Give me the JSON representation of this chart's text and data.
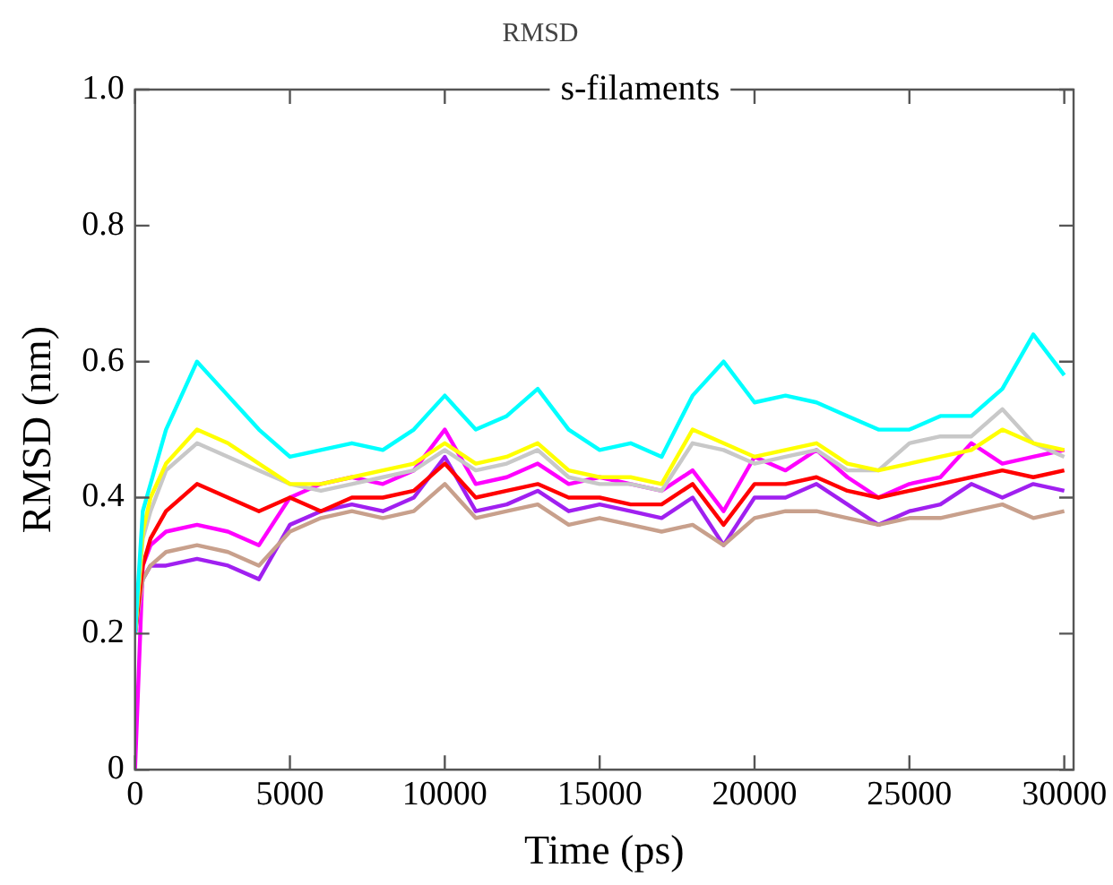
{
  "chart_data": {
    "type": "line",
    "title": "RMSD",
    "subtitle": "s-filaments",
    "xlabel": "Time (ps)",
    "ylabel": "RMSD (nm)",
    "x": [
      0,
      250,
      500,
      1000,
      2000,
      3000,
      4000,
      5000,
      6000,
      7000,
      8000,
      9000,
      10000,
      11000,
      12000,
      13000,
      14000,
      15000,
      16000,
      17000,
      18000,
      19000,
      20000,
      21000,
      22000,
      23000,
      24000,
      25000,
      26000,
      27000,
      28000,
      29000,
      30000
    ],
    "series": [
      {
        "color": "#00ffff",
        "values": [
          0.2,
          0.38,
          0.42,
          0.5,
          0.6,
          0.55,
          0.5,
          0.46,
          0.47,
          0.48,
          0.47,
          0.5,
          0.55,
          0.5,
          0.52,
          0.56,
          0.5,
          0.47,
          0.48,
          0.46,
          0.55,
          0.6,
          0.54,
          0.55,
          0.54,
          0.52,
          0.5,
          0.5,
          0.52,
          0.52,
          0.56,
          0.64,
          0.58
        ]
      },
      {
        "color": "#ffff00",
        "values": [
          0.2,
          0.35,
          0.4,
          0.45,
          0.5,
          0.48,
          0.45,
          0.42,
          0.42,
          0.43,
          0.44,
          0.45,
          0.48,
          0.45,
          0.46,
          0.48,
          0.44,
          0.43,
          0.43,
          0.42,
          0.5,
          0.48,
          0.46,
          0.47,
          0.48,
          0.45,
          0.44,
          0.45,
          0.46,
          0.47,
          0.5,
          0.48,
          0.47
        ]
      },
      {
        "color": "#c8c8c8",
        "values": [
          0.2,
          0.34,
          0.38,
          0.44,
          0.48,
          0.46,
          0.44,
          0.42,
          0.41,
          0.42,
          0.43,
          0.44,
          0.47,
          0.44,
          0.45,
          0.47,
          0.43,
          0.42,
          0.42,
          0.41,
          0.48,
          0.47,
          0.45,
          0.46,
          0.47,
          0.44,
          0.44,
          0.48,
          0.49,
          0.49,
          0.53,
          0.48,
          0.46
        ]
      },
      {
        "color": "#ff0000",
        "values": [
          0.2,
          0.3,
          0.34,
          0.38,
          0.42,
          0.4,
          0.38,
          0.4,
          0.38,
          0.4,
          0.4,
          0.41,
          0.45,
          0.4,
          0.41,
          0.42,
          0.4,
          0.4,
          0.39,
          0.39,
          0.42,
          0.36,
          0.42,
          0.42,
          0.43,
          0.41,
          0.4,
          0.41,
          0.42,
          0.43,
          0.44,
          0.43,
          0.44
        ]
      },
      {
        "color": "#c8a08c",
        "values": [
          0.2,
          0.28,
          0.3,
          0.32,
          0.33,
          0.32,
          0.3,
          0.35,
          0.37,
          0.38,
          0.37,
          0.38,
          0.42,
          0.37,
          0.38,
          0.39,
          0.36,
          0.37,
          0.36,
          0.35,
          0.36,
          0.33,
          0.37,
          0.38,
          0.38,
          0.37,
          0.36,
          0.37,
          0.37,
          0.38,
          0.39,
          0.37,
          0.38
        ]
      },
      {
        "color": "#ff00ff",
        "values": [
          0,
          0.3,
          0.33,
          0.35,
          0.36,
          0.35,
          0.33,
          0.4,
          0.42,
          0.43,
          0.42,
          0.44,
          0.5,
          0.42,
          0.43,
          0.45,
          0.42,
          0.43,
          0.42,
          0.41,
          0.44,
          0.38,
          0.46,
          0.44,
          0.47,
          0.43,
          0.4,
          0.42,
          0.43,
          0.48,
          0.45,
          0.46,
          0.47
        ]
      },
      {
        "color": "#a020f0",
        "values": [
          0.2,
          0.28,
          0.3,
          0.3,
          0.31,
          0.3,
          0.28,
          0.36,
          0.38,
          0.39,
          0.38,
          0.4,
          0.46,
          0.38,
          0.39,
          0.41,
          0.38,
          0.39,
          0.38,
          0.37,
          0.4,
          0.33,
          0.4,
          0.4,
          0.42,
          0.39,
          0.36,
          0.38,
          0.39,
          0.42,
          0.4,
          0.42,
          0.41
        ]
      }
    ],
    "xlim": [
      0,
      30300
    ],
    "xticks": [
      0,
      5000,
      10000,
      15000,
      20000,
      25000,
      30000
    ],
    "ylim": [
      0,
      1
    ],
    "yticks": [
      0,
      {
        "value": 0.2,
        "label": "0.2"
      },
      {
        "value": 0.4,
        "label": "0.4"
      },
      {
        "value": 0.6,
        "label": "0.6"
      },
      {
        "value": 0.8,
        "label": "0.8"
      },
      {
        "value": 1,
        "label": "1.0"
      }
    ],
    "grid": false,
    "legend": false,
    "marker": "none",
    "line_style": "solid"
  }
}
